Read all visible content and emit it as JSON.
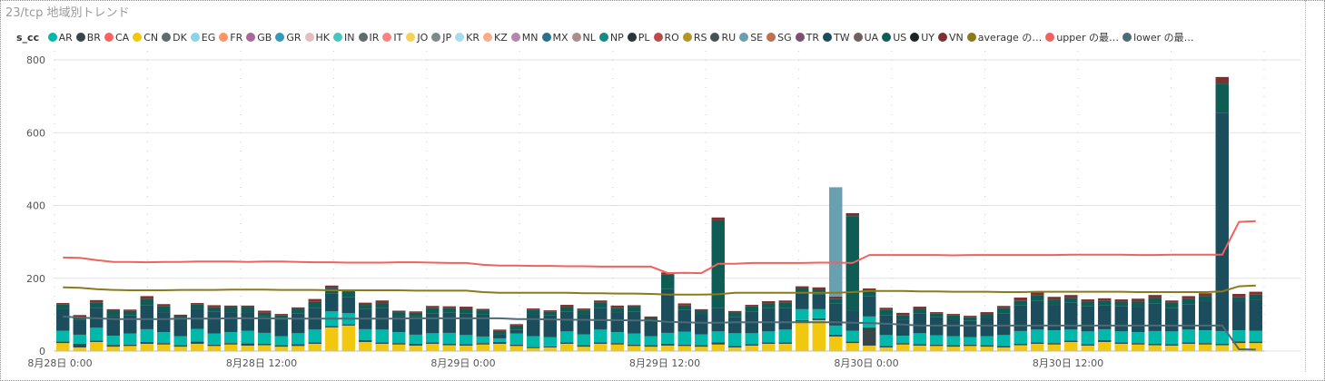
{
  "title": "23/tcp 地域別トレンド",
  "chart_data": {
    "type": "bar",
    "stacked": true,
    "legend_title": "s_cc",
    "legend_position": "top",
    "ylim": [
      0,
      800
    ],
    "yticks": [
      "0",
      "200",
      "400",
      "600",
      "800"
    ],
    "ytick_values": [
      0,
      200,
      400,
      600,
      800
    ],
    "xticks": [
      "8月28日 0:00",
      "8月28日 12:00",
      "8月29日 0:00",
      "8月29日 12:00",
      "8月30日 0:00",
      "8月30日 12:00"
    ],
    "xtick_positions": [
      0,
      12,
      24,
      36,
      48,
      60
    ],
    "n_categories": 72,
    "grid": "dotted",
    "series": [
      {
        "name": "AR",
        "color": "#01b8aa"
      },
      {
        "name": "BR",
        "color": "#374649"
      },
      {
        "name": "CA",
        "color": "#fd625e"
      },
      {
        "name": "CN",
        "color": "#f2c80f"
      },
      {
        "name": "DK",
        "color": "#5f6b6d"
      },
      {
        "name": "EG",
        "color": "#8ad4eb"
      },
      {
        "name": "FR",
        "color": "#fe9666"
      },
      {
        "name": "GB",
        "color": "#a66999"
      },
      {
        "name": "GR",
        "color": "#3599b8"
      },
      {
        "name": "HK",
        "color": "#dfbfbf"
      },
      {
        "name": "IN",
        "color": "#4ac5bb"
      },
      {
        "name": "IR",
        "color": "#5f6b6d"
      },
      {
        "name": "IT",
        "color": "#fb8281"
      },
      {
        "name": "JO",
        "color": "#f4d25a"
      },
      {
        "name": "JP",
        "color": "#7f898a"
      },
      {
        "name": "KR",
        "color": "#a4ddee"
      },
      {
        "name": "KZ",
        "color": "#fdab89"
      },
      {
        "name": "MN",
        "color": "#b687ac"
      },
      {
        "name": "MX",
        "color": "#28738a"
      },
      {
        "name": "NL",
        "color": "#a78f8f"
      },
      {
        "name": "NP",
        "color": "#168980"
      },
      {
        "name": "PL",
        "color": "#293537"
      },
      {
        "name": "RO",
        "color": "#bb4a4a"
      },
      {
        "name": "RS",
        "color": "#b59525"
      },
      {
        "name": "RU",
        "color": "#475052"
      },
      {
        "name": "SE",
        "color": "#6a9fb0"
      },
      {
        "name": "SG",
        "color": "#bd7150"
      },
      {
        "name": "TR",
        "color": "#7b4f71"
      },
      {
        "name": "TW",
        "color": "#1b4d5c"
      },
      {
        "name": "UA",
        "color": "#706060"
      },
      {
        "name": "US",
        "color": "#0f5c55"
      },
      {
        "name": "UY",
        "color": "#1c2325"
      },
      {
        "name": "VN",
        "color": "#7d3231"
      }
    ],
    "bar_segments": [
      {
        "series": "CN",
        "values": [
          22,
          10,
          25,
          12,
          14,
          20,
          18,
          12,
          20,
          14,
          18,
          15,
          16,
          12,
          14,
          20,
          65,
          70,
          25,
          20,
          18,
          15,
          20,
          16,
          15,
          18,
          20,
          14,
          8,
          10,
          20,
          12,
          20,
          18,
          14,
          12,
          15,
          14,
          12,
          18,
          10,
          15,
          20,
          20,
          80,
          85,
          40,
          22,
          15,
          10,
          18,
          15,
          14,
          12,
          14,
          12,
          10,
          16,
          20,
          18,
          25,
          15,
          25,
          20,
          18,
          16,
          15,
          20,
          18,
          16,
          22,
          22
        ]
      },
      {
        "name": "",
        "series": "BR",
        "values": [
          4,
          10,
          4,
          5,
          4,
          5,
          4,
          4,
          6,
          4,
          4,
          6,
          4,
          4,
          5,
          4,
          4,
          4,
          5,
          4,
          4,
          5,
          4,
          4,
          4,
          4,
          5,
          4,
          3,
          3,
          4,
          4,
          4,
          4,
          4,
          4,
          5,
          4,
          4,
          6,
          4,
          4,
          4,
          4,
          5,
          5,
          5,
          4,
          50,
          4,
          4,
          4,
          4,
          4,
          4,
          4,
          4,
          4,
          4,
          4,
          4,
          4,
          5,
          4,
          4,
          4,
          4,
          4,
          4,
          4,
          5,
          4
        ]
      },
      {
        "series": "AR",
        "values": [
          30,
          25,
          35,
          25,
          30,
          35,
          30,
          25,
          35,
          30,
          30,
          35,
          30,
          25,
          30,
          35,
          40,
          30,
          30,
          35,
          30,
          25,
          25,
          30,
          25,
          18,
          10,
          30,
          30,
          25,
          30,
          30,
          35,
          30,
          30,
          25,
          30,
          35,
          30,
          30,
          35,
          30,
          30,
          35,
          30,
          25,
          25,
          30,
          30,
          30,
          20,
          30,
          25,
          25,
          20,
          25,
          30,
          35,
          35,
          35,
          30,
          35,
          30,
          30,
          30,
          35,
          35,
          35,
          35,
          35,
          30,
          30
        ]
      },
      {
        "series": "TW",
        "values": [
          60,
          40,
          55,
          55,
          50,
          65,
          55,
          45,
          55,
          60,
          55,
          50,
          45,
          45,
          55,
          60,
          50,
          45,
          55,
          60,
          45,
          50,
          55,
          55,
          60,
          60,
          10,
          10,
          60,
          60,
          55,
          55,
          60,
          55,
          60,
          40,
          120,
          60,
          55,
          65,
          45,
          60,
          65,
          60,
          45,
          40,
          60,
          55,
          55,
          55,
          45,
          55,
          50,
          45,
          45,
          50,
          60,
          70,
          80,
          70,
          75,
          70,
          65,
          70,
          70,
          75,
          65,
          70,
          80,
          600,
          80,
          85
        ]
      },
      {
        "series": "US",
        "values": [
          12,
          8,
          15,
          14,
          12,
          18,
          16,
          10,
          12,
          12,
          14,
          15,
          10,
          12,
          12,
          16,
          15,
          14,
          12,
          12,
          10,
          10,
          14,
          14,
          12,
          12,
          10,
          12,
          12,
          10,
          12,
          12,
          14,
          12,
          14,
          10,
          40,
          12,
          10,
          240,
          12,
          14,
          12,
          14,
          12,
          12,
          14,
          260,
          14,
          14,
          12,
          12,
          10,
          12,
          10,
          10,
          14,
          14,
          14,
          14,
          12,
          12,
          14,
          12,
          14,
          16,
          14,
          14,
          14,
          80,
          12,
          14
        ]
      },
      {
        "series": "VN",
        "values": [
          4,
          6,
          6,
          4,
          4,
          8,
          6,
          4,
          4,
          6,
          4,
          4,
          6,
          4,
          4,
          8,
          6,
          6,
          6,
          8,
          4,
          4,
          6,
          4,
          6,
          4,
          4,
          4,
          4,
          4,
          6,
          4,
          6,
          6,
          4,
          4,
          6,
          6,
          4,
          8,
          4,
          4,
          6,
          6,
          6,
          8,
          6,
          8,
          8,
          6,
          6,
          6,
          4,
          4,
          4,
          6,
          6,
          8,
          8,
          8,
          8,
          6,
          6,
          6,
          8,
          8,
          6,
          8,
          8,
          18,
          8,
          8
        ]
      }
    ],
    "lines": [
      {
        "name": "average の…",
        "color": "#8b7a1b",
        "values": [
          175,
          174,
          170,
          168,
          167,
          167,
          167,
          168,
          168,
          168,
          169,
          169,
          169,
          168,
          168,
          168,
          167,
          167,
          167,
          167,
          167,
          166,
          166,
          166,
          166,
          162,
          160,
          160,
          160,
          160,
          160,
          159,
          159,
          158,
          158,
          157,
          155,
          155,
          155,
          156,
          160,
          160,
          160,
          160,
          160,
          160,
          160,
          162,
          165,
          165,
          165,
          164,
          164,
          163,
          163,
          163,
          162,
          162,
          163,
          163,
          163,
          163,
          163,
          163,
          162,
          162,
          162,
          162,
          162,
          164,
          178,
          180
        ]
      },
      {
        "name": "upper の最…",
        "color": "#f0625e",
        "values": [
          257,
          256,
          250,
          245,
          245,
          244,
          245,
          245,
          246,
          246,
          246,
          245,
          246,
          246,
          245,
          244,
          244,
          243,
          243,
          243,
          244,
          244,
          243,
          242,
          242,
          237,
          235,
          235,
          234,
          234,
          233,
          233,
          232,
          232,
          232,
          232,
          214,
          215,
          214,
          240,
          240,
          242,
          242,
          242,
          242,
          243,
          243,
          242,
          264,
          264,
          264,
          264,
          264,
          263,
          264,
          264,
          264,
          264,
          264,
          264,
          265,
          265,
          265,
          265,
          264,
          264,
          265,
          265,
          265,
          265,
          355,
          357
        ]
      },
      {
        "name": "lower の最…",
        "color": "#4e6a75",
        "values": [
          95,
          92,
          90,
          88,
          88,
          88,
          88,
          89,
          89,
          89,
          90,
          90,
          90,
          89,
          89,
          89,
          89,
          89,
          89,
          89,
          89,
          90,
          90,
          90,
          90,
          90,
          90,
          88,
          88,
          87,
          86,
          86,
          85,
          85,
          84,
          84,
          80,
          79,
          78,
          78,
          79,
          79,
          79,
          79,
          79,
          79,
          79,
          78,
          77,
          75,
          73,
          70,
          70,
          70,
          70,
          70,
          70,
          70,
          70,
          70,
          70,
          70,
          70,
          70,
          70,
          70,
          70,
          70,
          70,
          70,
          5,
          4
        ]
      }
    ],
    "special_bars": [
      {
        "index": 46,
        "series": "SE",
        "value": 300,
        "color": "#6a9fb0"
      }
    ]
  }
}
